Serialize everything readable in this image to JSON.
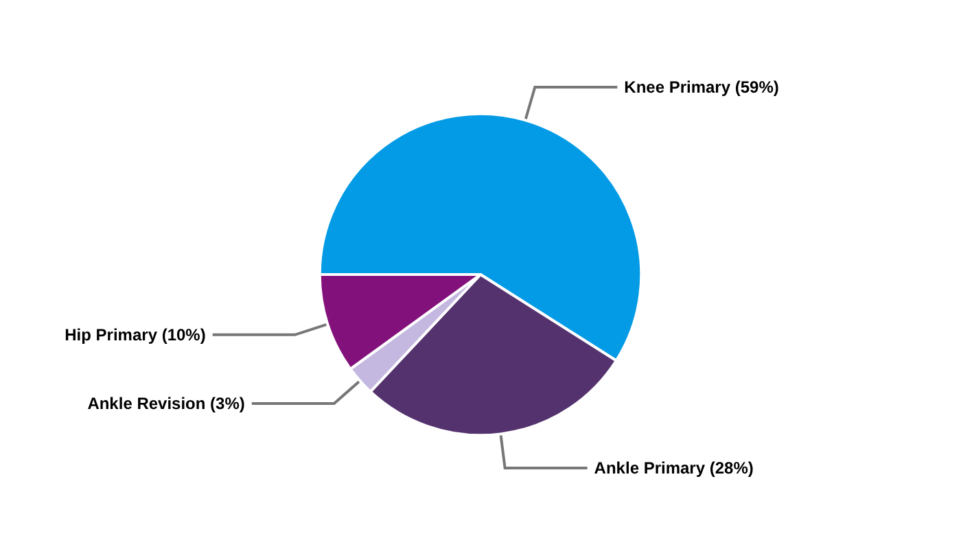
{
  "chart_data": {
    "type": "pie",
    "categories": [
      "Knee Primary (59%)",
      "Ankle Primary (28%)",
      "Ankle Revision (3%)",
      "Hip Primary (10%)"
    ],
    "values": [
      59,
      28,
      3,
      10
    ],
    "colors": [
      "#039be5",
      "#54326e",
      "#c5b8e0",
      "#83117b"
    ],
    "legend": false
  }
}
